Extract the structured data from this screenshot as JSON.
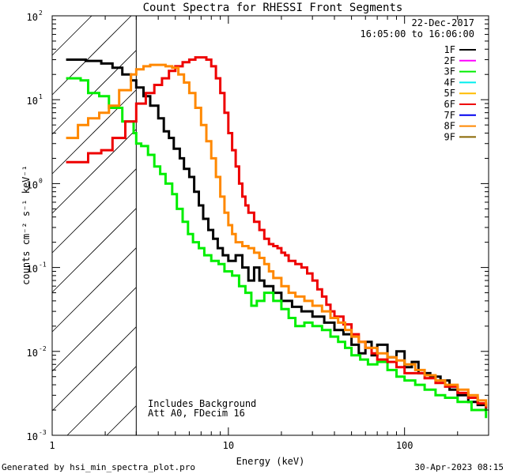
{
  "chart_data": {
    "type": "line",
    "title": "Count Spectra for RHESSI Front Segments",
    "xlabel": "Energy (keV)",
    "ylabel": "counts cm⁻² s⁻¹ keV⁻¹",
    "xscale": "log",
    "yscale": "log",
    "xlim": [
      1,
      300
    ],
    "ylim": [
      0.001,
      100
    ],
    "x_ticks": [
      {
        "value": 1,
        "label": "1"
      },
      {
        "value": 10,
        "label": "10"
      },
      {
        "value": 100,
        "label": "100"
      }
    ],
    "y_ticks": [
      {
        "value": 100,
        "base": "10",
        "exp": "2"
      },
      {
        "value": 10,
        "base": "10",
        "exp": "1"
      },
      {
        "value": 1,
        "base": "10",
        "exp": "0"
      },
      {
        "value": 0.1,
        "base": "10",
        "exp": "-1"
      },
      {
        "value": 0.01,
        "base": "10",
        "exp": "-2"
      },
      {
        "value": 0.001,
        "base": "10",
        "exp": "-3"
      }
    ],
    "excluded_region": {
      "x_from": 1,
      "x_to": 3,
      "style": "hatched"
    },
    "date": "22-Dec-2017",
    "time_range": "16:05:00 to 16:06:00",
    "annotations": [
      "Includes Background",
      "Att A0, FDecim 16"
    ],
    "legend": [
      {
        "name": "1F",
        "color": "#000000"
      },
      {
        "name": "2F",
        "color": "#ff00ff"
      },
      {
        "name": "3F",
        "color": "#00ee00"
      },
      {
        "name": "4F",
        "color": "#00eeee"
      },
      {
        "name": "5F",
        "color": "#ffbb00"
      },
      {
        "name": "6F",
        "color": "#ee0000"
      },
      {
        "name": "7F",
        "color": "#0000ee"
      },
      {
        "name": "8F",
        "color": "#ff8800"
      },
      {
        "name": "9F",
        "color": "#886600"
      }
    ],
    "series": [
      {
        "name": "1F",
        "color": "#000000",
        "points": [
          [
            1.2,
            30
          ],
          [
            1.55,
            29
          ],
          [
            1.9,
            27
          ],
          [
            2.2,
            24
          ],
          [
            2.5,
            20
          ],
          [
            2.8,
            17
          ],
          [
            3.0,
            14
          ],
          [
            3.3,
            11
          ],
          [
            3.6,
            8.5
          ],
          [
            4.0,
            6
          ],
          [
            4.3,
            4.2
          ],
          [
            4.6,
            3.5
          ],
          [
            4.9,
            2.6
          ],
          [
            5.3,
            2
          ],
          [
            5.6,
            1.5
          ],
          [
            6.0,
            1.2
          ],
          [
            6.4,
            0.8
          ],
          [
            6.8,
            0.55
          ],
          [
            7.2,
            0.38
          ],
          [
            7.7,
            0.28
          ],
          [
            8.2,
            0.22
          ],
          [
            8.7,
            0.17
          ],
          [
            9.3,
            0.14
          ],
          [
            10,
            0.12
          ],
          [
            11,
            0.14
          ],
          [
            12,
            0.1
          ],
          [
            13,
            0.07
          ],
          [
            14,
            0.1
          ],
          [
            15,
            0.07
          ],
          [
            16,
            0.06
          ],
          [
            18,
            0.05
          ],
          [
            20,
            0.04
          ],
          [
            23,
            0.034
          ],
          [
            26,
            0.03
          ],
          [
            30,
            0.026
          ],
          [
            35,
            0.022
          ],
          [
            40,
            0.018
          ],
          [
            45,
            0.016
          ],
          [
            50,
            0.012
          ],
          [
            55,
            0.0095
          ],
          [
            60,
            0.013
          ],
          [
            65,
            0.009
          ],
          [
            70,
            0.012
          ],
          [
            80,
            0.0085
          ],
          [
            90,
            0.01
          ],
          [
            100,
            0.0065
          ],
          [
            110,
            0.0075
          ],
          [
            120,
            0.0055
          ],
          [
            140,
            0.005
          ],
          [
            160,
            0.0045
          ],
          [
            180,
            0.0035
          ],
          [
            200,
            0.003
          ],
          [
            230,
            0.0025
          ],
          [
            260,
            0.0023
          ],
          [
            290,
            0.002
          ]
        ]
      },
      {
        "name": "3F",
        "color": "#00ee00",
        "points": [
          [
            1.2,
            18
          ],
          [
            1.45,
            17
          ],
          [
            1.6,
            12
          ],
          [
            1.85,
            11
          ],
          [
            2.1,
            8
          ],
          [
            2.5,
            5.5
          ],
          [
            2.9,
            4
          ],
          [
            3.0,
            3
          ],
          [
            3.2,
            2.8
          ],
          [
            3.5,
            2.2
          ],
          [
            3.8,
            1.6
          ],
          [
            4.1,
            1.3
          ],
          [
            4.4,
            1.0
          ],
          [
            4.8,
            0.75
          ],
          [
            5.1,
            0.5
          ],
          [
            5.5,
            0.35
          ],
          [
            5.9,
            0.25
          ],
          [
            6.3,
            0.2
          ],
          [
            6.8,
            0.17
          ],
          [
            7.3,
            0.14
          ],
          [
            8,
            0.12
          ],
          [
            8.8,
            0.11
          ],
          [
            9.5,
            0.09
          ],
          [
            10.5,
            0.08
          ],
          [
            11.5,
            0.06
          ],
          [
            12.5,
            0.05
          ],
          [
            13.5,
            0.035
          ],
          [
            14.5,
            0.04
          ],
          [
            16,
            0.05
          ],
          [
            18,
            0.04
          ],
          [
            20,
            0.032
          ],
          [
            22,
            0.025
          ],
          [
            24,
            0.02
          ],
          [
            27,
            0.022
          ],
          [
            30,
            0.02
          ],
          [
            34,
            0.018
          ],
          [
            38,
            0.015
          ],
          [
            42,
            0.013
          ],
          [
            46,
            0.011
          ],
          [
            50,
            0.009
          ],
          [
            56,
            0.008
          ],
          [
            62,
            0.007
          ],
          [
            70,
            0.0075
          ],
          [
            80,
            0.006
          ],
          [
            90,
            0.005
          ],
          [
            100,
            0.0045
          ],
          [
            115,
            0.004
          ],
          [
            130,
            0.0035
          ],
          [
            150,
            0.003
          ],
          [
            170,
            0.0028
          ],
          [
            200,
            0.0025
          ],
          [
            240,
            0.002
          ],
          [
            290,
            0.0016
          ]
        ]
      },
      {
        "name": "6F",
        "color": "#ee0000",
        "points": [
          [
            1.2,
            1.8
          ],
          [
            1.5,
            1.8
          ],
          [
            1.6,
            2.3
          ],
          [
            1.9,
            2.5
          ],
          [
            2.2,
            3.5
          ],
          [
            2.6,
            5.5
          ],
          [
            3.0,
            9
          ],
          [
            3.4,
            12
          ],
          [
            3.8,
            15
          ],
          [
            4.2,
            18
          ],
          [
            4.6,
            22
          ],
          [
            5.0,
            25
          ],
          [
            5.5,
            28
          ],
          [
            6.0,
            30
          ],
          [
            6.5,
            32
          ],
          [
            7.0,
            32
          ],
          [
            7.5,
            30
          ],
          [
            8.0,
            25
          ],
          [
            8.5,
            18
          ],
          [
            9.0,
            12
          ],
          [
            9.5,
            7
          ],
          [
            10,
            4
          ],
          [
            10.5,
            2.5
          ],
          [
            11,
            1.6
          ],
          [
            11.5,
            1.0
          ],
          [
            12,
            0.7
          ],
          [
            12.5,
            0.55
          ],
          [
            13,
            0.45
          ],
          [
            14,
            0.35
          ],
          [
            15,
            0.28
          ],
          [
            16,
            0.22
          ],
          [
            17,
            0.19
          ],
          [
            18,
            0.18
          ],
          [
            19,
            0.17
          ],
          [
            20,
            0.15
          ],
          [
            21,
            0.14
          ],
          [
            22,
            0.12
          ],
          [
            23,
            0.12
          ],
          [
            24,
            0.11
          ],
          [
            26,
            0.1
          ],
          [
            28,
            0.085
          ],
          [
            30,
            0.07
          ],
          [
            32,
            0.055
          ],
          [
            34,
            0.045
          ],
          [
            36,
            0.036
          ],
          [
            38,
            0.03
          ],
          [
            40,
            0.026
          ],
          [
            45,
            0.021
          ],
          [
            50,
            0.016
          ],
          [
            55,
            0.013
          ],
          [
            60,
            0.011
          ],
          [
            65,
            0.0095
          ],
          [
            70,
            0.008
          ],
          [
            80,
            0.0075
          ],
          [
            90,
            0.0065
          ],
          [
            100,
            0.0055
          ],
          [
            115,
            0.0055
          ],
          [
            130,
            0.0048
          ],
          [
            150,
            0.0042
          ],
          [
            170,
            0.0038
          ],
          [
            200,
            0.0032
          ],
          [
            230,
            0.0028
          ],
          [
            260,
            0.0024
          ],
          [
            290,
            0.0021
          ]
        ]
      },
      {
        "name": "8F",
        "color": "#ff8800",
        "points": [
          [
            1.2,
            3.5
          ],
          [
            1.4,
            5
          ],
          [
            1.6,
            6
          ],
          [
            1.85,
            7
          ],
          [
            2.1,
            8.5
          ],
          [
            2.4,
            13
          ],
          [
            2.8,
            20
          ],
          [
            3.0,
            23
          ],
          [
            3.3,
            25
          ],
          [
            3.6,
            26
          ],
          [
            4.0,
            26
          ],
          [
            4.4,
            25
          ],
          [
            4.8,
            24
          ],
          [
            5.2,
            20
          ],
          [
            5.6,
            16
          ],
          [
            6.0,
            12
          ],
          [
            6.5,
            8
          ],
          [
            7.0,
            5
          ],
          [
            7.5,
            3.2
          ],
          [
            8.0,
            2
          ],
          [
            8.5,
            1.2
          ],
          [
            9.0,
            0.7
          ],
          [
            9.5,
            0.45
          ],
          [
            10,
            0.32
          ],
          [
            10.5,
            0.25
          ],
          [
            11,
            0.2
          ],
          [
            12,
            0.18
          ],
          [
            13,
            0.17
          ],
          [
            14,
            0.15
          ],
          [
            15,
            0.13
          ],
          [
            16,
            0.11
          ],
          [
            17,
            0.09
          ],
          [
            18,
            0.075
          ],
          [
            20,
            0.06
          ],
          [
            22,
            0.05
          ],
          [
            24,
            0.045
          ],
          [
            27,
            0.04
          ],
          [
            30,
            0.035
          ],
          [
            34,
            0.03
          ],
          [
            38,
            0.025
          ],
          [
            42,
            0.022
          ],
          [
            46,
            0.018
          ],
          [
            50,
            0.015
          ],
          [
            55,
            0.013
          ],
          [
            60,
            0.011
          ],
          [
            70,
            0.0095
          ],
          [
            80,
            0.0085
          ],
          [
            90,
            0.0078
          ],
          [
            100,
            0.007
          ],
          [
            115,
            0.006
          ],
          [
            130,
            0.0052
          ],
          [
            150,
            0.0045
          ],
          [
            170,
            0.004
          ],
          [
            200,
            0.0035
          ],
          [
            230,
            0.003
          ],
          [
            260,
            0.0026
          ],
          [
            290,
            0.0022
          ]
        ]
      }
    ]
  },
  "footer": {
    "left": "Generated by hsi_min_spectra_plot.pro",
    "right": "30-Apr-2023 08:15"
  }
}
